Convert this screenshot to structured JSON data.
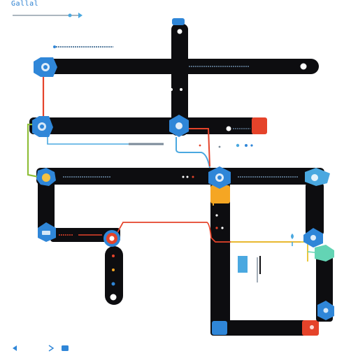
{
  "title": "Gallal",
  "footer": {
    "left": "",
    "right": ""
  },
  "colors": {
    "track": "#0d0d10",
    "blue": "#2f86d8",
    "red": "#e5432a",
    "green": "#8fbf3a",
    "teal": "#63d4b4",
    "orange": "#f5a623",
    "sky": "#4aa8e0"
  },
  "icons": [
    "gear-icon",
    "flag-icon",
    "pin-icon",
    "dot-icon"
  ]
}
